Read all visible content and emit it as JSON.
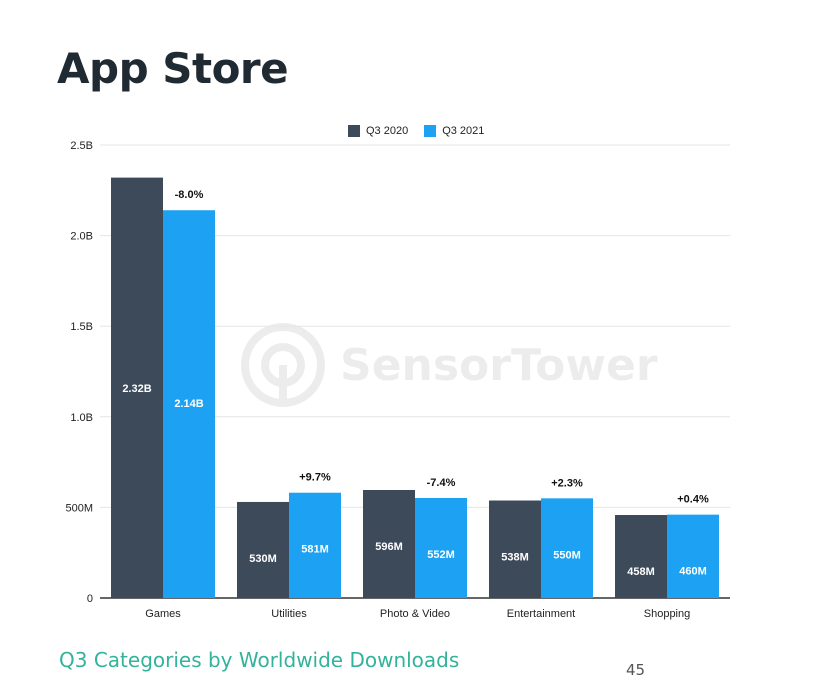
{
  "page": {
    "title": "App Store",
    "subtitle": "Q3 Categories by Worldwide Downloads",
    "page_number": "45",
    "watermark": "SensorTower"
  },
  "colors": {
    "q3_2020": "#3c4a5a",
    "q3_2021": "#1da1f2",
    "grid": "#e6e6e6",
    "axis": "#333333"
  },
  "chart_data": {
    "type": "bar",
    "categories": [
      "Games",
      "Utilities",
      "Photo & Video",
      "Entertainment",
      "Shopping"
    ],
    "series": [
      {
        "name": "Q3 2020",
        "values": [
          2320000000,
          530000000,
          596000000,
          538000000,
          458000000
        ],
        "labels": [
          "2.32B",
          "530M",
          "596M",
          "538M",
          "458M"
        ]
      },
      {
        "name": "Q3 2021",
        "values": [
          2140000000,
          581000000,
          552000000,
          550000000,
          460000000
        ],
        "labels": [
          "2.14B",
          "581M",
          "552M",
          "550M",
          "460M"
        ]
      }
    ],
    "change_labels": [
      "-8.0%",
      "+9.7%",
      "-7.4%",
      "+2.3%",
      "+0.4%"
    ],
    "yticks": [
      {
        "value": 0,
        "label": "0"
      },
      {
        "value": 500000000,
        "label": "500M"
      },
      {
        "value": 1000000000,
        "label": "1.0B"
      },
      {
        "value": 1500000000,
        "label": "1.5B"
      },
      {
        "value": 2000000000,
        "label": "2.0B"
      },
      {
        "value": 2500000000,
        "label": "2.5B"
      }
    ],
    "ylim": [
      0,
      2500000000
    ],
    "grid": true,
    "legend_position": "top-center"
  }
}
